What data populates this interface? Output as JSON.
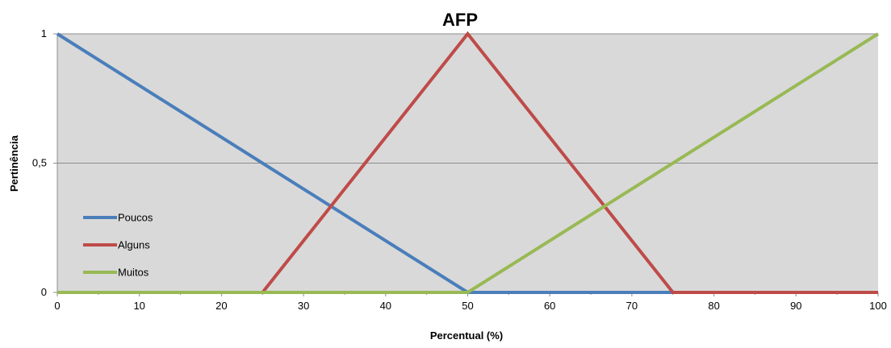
{
  "chart_data": {
    "type": "line",
    "title": "AFP",
    "xlabel": "Percentual (%)",
    "ylabel": "Pertinência",
    "xlim": [
      0,
      100
    ],
    "ylim": [
      0,
      1
    ],
    "x_ticks": [
      0,
      10,
      20,
      30,
      40,
      50,
      60,
      70,
      80,
      90,
      100
    ],
    "y_ticks": [
      {
        "value": 0,
        "label": "0"
      },
      {
        "value": 0.5,
        "label": "0,5"
      },
      {
        "value": 1,
        "label": "1"
      }
    ],
    "grid": "horizontal",
    "legend_position": "left-bottom",
    "plot_background": "#d9d9d9",
    "series": [
      {
        "name": "Poucos",
        "color": "#4a7ebb",
        "points": [
          [
            0,
            1
          ],
          [
            50,
            0
          ],
          [
            100,
            0
          ]
        ]
      },
      {
        "name": "Alguns",
        "color": "#be4b48",
        "points": [
          [
            0,
            0
          ],
          [
            25,
            0
          ],
          [
            50,
            1
          ],
          [
            75,
            0
          ],
          [
            100,
            0
          ]
        ]
      },
      {
        "name": "Muitos",
        "color": "#98b954",
        "points": [
          [
            0,
            0
          ],
          [
            50,
            0
          ],
          [
            100,
            1
          ]
        ]
      }
    ]
  }
}
